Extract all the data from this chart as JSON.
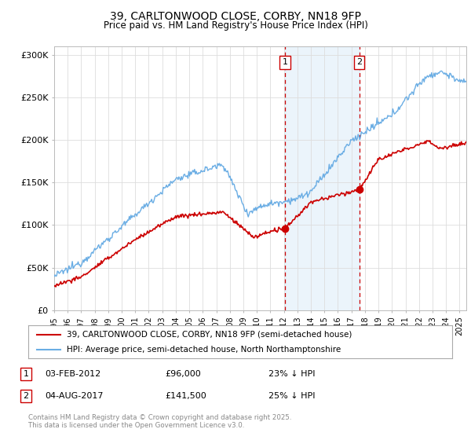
{
  "title": "39, CARLTONWOOD CLOSE, CORBY, NN18 9FP",
  "subtitle": "Price paid vs. HM Land Registry's House Price Index (HPI)",
  "ylabel_ticks": [
    "£0",
    "£50K",
    "£100K",
    "£150K",
    "£200K",
    "£250K",
    "£300K"
  ],
  "ytick_vals": [
    0,
    50000,
    100000,
    150000,
    200000,
    250000,
    300000
  ],
  "ylim": [
    0,
    310000
  ],
  "xlim_start": 1995.0,
  "xlim_end": 2025.5,
  "hpi_color": "#6aade4",
  "price_color": "#cc0000",
  "marker1_date_x": 2012.08,
  "marker2_date_x": 2017.58,
  "marker1_price": 96000,
  "marker2_price": 141500,
  "marker1_label": "1",
  "marker2_label": "2",
  "legend_line1": "39, CARLTONWOOD CLOSE, CORBY, NN18 9FP (semi-detached house)",
  "legend_line2": "HPI: Average price, semi-detached house, North Northamptonshire",
  "footer": "Contains HM Land Registry data © Crown copyright and database right 2025.\nThis data is licensed under the Open Government Licence v3.0.",
  "background_color": "#ffffff",
  "plot_bg_color": "#ffffff",
  "grid_color": "#dddddd"
}
